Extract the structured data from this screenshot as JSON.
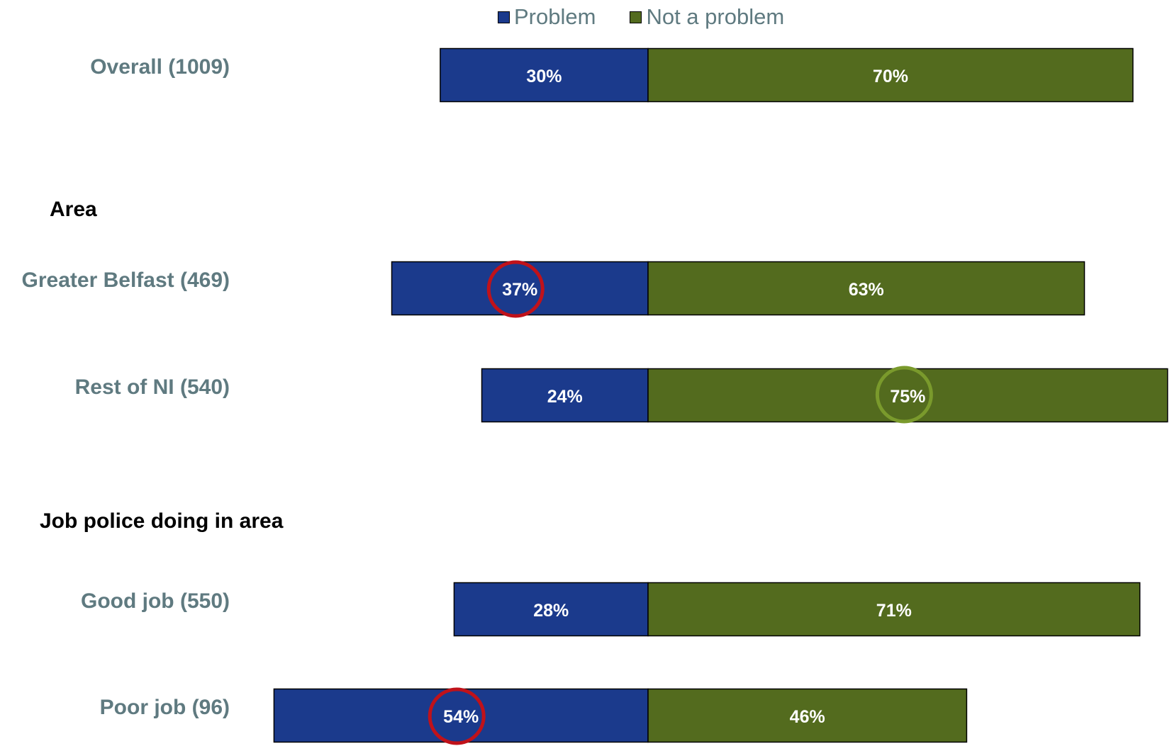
{
  "chart_data": {
    "type": "bar",
    "orientation": "horizontal",
    "stacked": true,
    "diverging": true,
    "legend": {
      "placement": "top-center",
      "entries": [
        "Problem",
        "Not a problem"
      ]
    },
    "colors": {
      "Problem": "#1b3a8c",
      "Not a problem": "#536b1e",
      "category_label": "#5f7a80",
      "section_label": "#000000",
      "highlight_problem": "#c0121a",
      "highlight_not_problem": "#7a9a2c"
    },
    "rows": [
      {
        "kind": "category",
        "label": "Overall (1009)",
        "problem": 30,
        "not_problem": 70,
        "problem_label": "30%",
        "not_problem_label": "70%",
        "highlight": null
      },
      {
        "kind": "section",
        "label": "Area"
      },
      {
        "kind": "category",
        "label": "Greater Belfast (469)",
        "problem": 37,
        "not_problem": 63,
        "problem_label": "37%",
        "not_problem_label": "63%",
        "highlight": "problem"
      },
      {
        "kind": "category",
        "label": "Rest of NI (540)",
        "problem": 24,
        "not_problem": 75,
        "problem_label": "24%",
        "not_problem_label": "75%",
        "highlight": "not_problem"
      },
      {
        "kind": "section",
        "label": "Job police doing in area"
      },
      {
        "kind": "category",
        "label": "Good job (550)",
        "problem": 28,
        "not_problem": 71,
        "problem_label": "28%",
        "not_problem_label": "71%",
        "highlight": null
      },
      {
        "kind": "category",
        "label": "Poor job (96)",
        "problem": 54,
        "not_problem": 46,
        "problem_label": "54%",
        "not_problem_label": "46%",
        "highlight": "problem"
      }
    ]
  }
}
